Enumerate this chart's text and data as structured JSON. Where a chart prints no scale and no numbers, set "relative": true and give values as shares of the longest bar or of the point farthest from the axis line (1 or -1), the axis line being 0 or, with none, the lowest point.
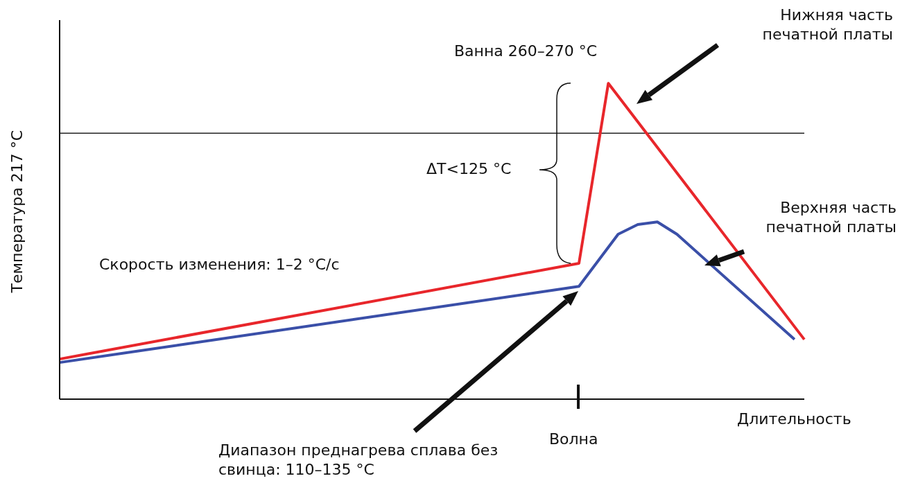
{
  "chart_data": {
    "type": "line",
    "relative": true,
    "ylabel": "Температура 217 °C",
    "xlabel": "Длительность",
    "marker": "none",
    "line_style": "solid",
    "categories": [
      null,
      null,
      null,
      null,
      null,
      null,
      null,
      null,
      null,
      null,
      null,
      null,
      null,
      null,
      null,
      null,
      null,
      null,
      null,
      null,
      null,
      null,
      null,
      null,
      null,
      null,
      null,
      null,
      null,
      null,
      null,
      null,
      null,
      null,
      null,
      null,
      null,
      null,
      null,
      null,
      null,
      null,
      null,
      null,
      null,
      null,
      null,
      null,
      null,
      null,
      null,
      null,
      null,
      null,
      null,
      null,
      null,
      null,
      null,
      null,
      null,
      null,
      null,
      null,
      null,
      null,
      null,
      null,
      null,
      null,
      null,
      null,
      null,
      null,
      null,
      null,
      null
    ],
    "series": [
      {
        "color": "#e8262b",
        "values": [
          0.127,
          null,
          null,
          null,
          null,
          null,
          null,
          null,
          null,
          null,
          null,
          null,
          null,
          null,
          null,
          null,
          null,
          null,
          null,
          null,
          null,
          null,
          null,
          null,
          null,
          null,
          null,
          null,
          null,
          null,
          null,
          null,
          null,
          null,
          null,
          null,
          null,
          null,
          null,
          null,
          null,
          null,
          null,
          null,
          null,
          null,
          null,
          null,
          null,
          null,
          null,
          null,
          null,
          0.43,
          null,
          null,
          1,
          null,
          null,
          null,
          null,
          null,
          null,
          null,
          null,
          null,
          null,
          null,
          null,
          null,
          null,
          null,
          null,
          null,
          null,
          null,
          0.189
        ]
      },
      {
        "color": "#3a4fa8",
        "values": [
          0.116,
          null,
          null,
          null,
          null,
          null,
          null,
          null,
          null,
          null,
          null,
          null,
          null,
          null,
          null,
          null,
          null,
          null,
          null,
          null,
          null,
          null,
          null,
          null,
          null,
          null,
          null,
          null,
          null,
          null,
          null,
          null,
          null,
          null,
          null,
          null,
          null,
          null,
          null,
          null,
          null,
          null,
          null,
          null,
          null,
          null,
          null,
          null,
          null,
          null,
          null,
          null,
          null,
          0.357,
          null,
          null,
          null,
          0.522,
          null,
          0.553,
          null,
          0.561,
          null,
          0.522,
          null,
          null,
          null,
          null,
          null,
          null,
          null,
          null,
          null,
          null,
          null,
          0.189,
          null
        ]
      }
    ],
    "ref_lines": [
      {
        "axis": "y",
        "value": 0.842,
        "color": "#222222"
      }
    ],
    "annotations": [
      "Ванна 260–270 °C",
      "Нижняя часть печатной платы",
      "ΔT<125 °C",
      "Верхняя часть печатной платы",
      "Скорость изменения: 1–2 °C/с",
      "Диапазон преднагрева сплава без свинца: 110–135 °C",
      "Волна"
    ]
  }
}
